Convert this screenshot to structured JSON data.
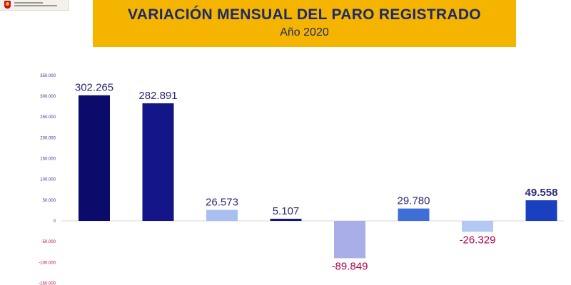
{
  "header": {
    "title": "VARIACIÓN MENSUAL DEL PARO REGISTRADO",
    "subtitle": "Año 2020"
  },
  "colors": {
    "title_bg": "#f5b400",
    "title_text": "#1b2a6b",
    "positive_label": "#2a2a7a",
    "negative_label": "#b00048",
    "tick_positive": "#2a3a8a",
    "tick_negative": "#c0004a"
  },
  "chart_data": {
    "type": "bar",
    "title": "VARIACIÓN MENSUAL DEL PARO REGISTRADO",
    "subtitle": "Año 2020",
    "xlabel": "",
    "ylabel": "",
    "ylim": [
      -150000,
      350000
    ],
    "yticks": [
      350000,
      300000,
      250000,
      200000,
      150000,
      100000,
      50000,
      0,
      -50000,
      -100000,
      -150000
    ],
    "ytick_labels": [
      "350.000",
      "300.000",
      "250.000",
      "200.000",
      "150.000",
      "100.000",
      "50.000",
      "0",
      "-50.000",
      "-100.000",
      "-150.000"
    ],
    "grid": false,
    "values": [
      302265,
      282891,
      26573,
      5107,
      -89849,
      29780,
      -26329,
      49558
    ],
    "value_labels": [
      "302.265",
      "282.891",
      "26.573",
      "5.107",
      "-89.849",
      "29.780",
      "-26.329",
      "49.558"
    ],
    "bar_colors": [
      "#0b0b6b",
      "#15158a",
      "#a9bff0",
      "#12167a",
      "#aaaee8",
      "#3e6fd8",
      "#b3c8f2",
      "#1a3fbf"
    ]
  }
}
